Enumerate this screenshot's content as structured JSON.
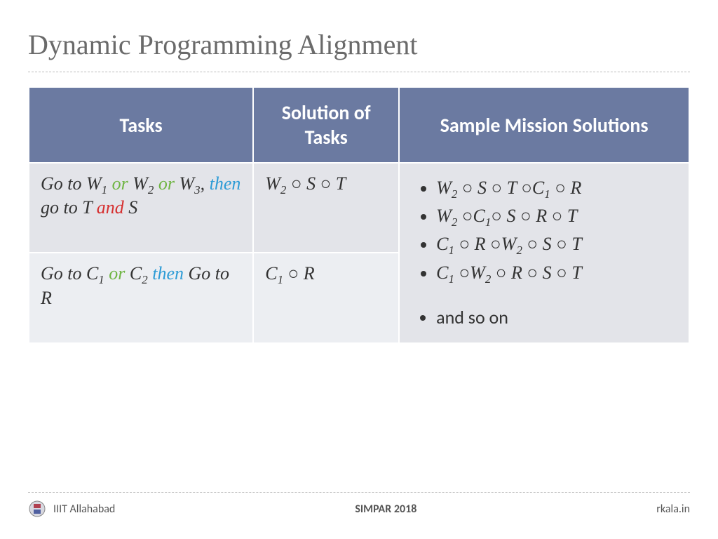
{
  "title": "Dynamic Programming Alignment",
  "table": {
    "headers": [
      "Tasks",
      "Solution of Tasks",
      "Sample Mission Solutions"
    ],
    "col_widths": [
      "34%",
      "22%",
      "44%"
    ],
    "header_bg": "#6b7aa1",
    "header_color": "#ffffff",
    "cell_bg_a": "#e3e4e9",
    "cell_bg_b": "#eceef2",
    "rows": [
      {
        "task_parts": [
          {
            "t": "Go to W",
            "cls": ""
          },
          {
            "t": "1",
            "cls": "sub"
          },
          {
            "t": " or ",
            "cls": "or"
          },
          {
            "t": "W",
            "cls": ""
          },
          {
            "t": "2",
            "cls": "sub"
          },
          {
            "t": " or ",
            "cls": "or"
          },
          {
            "t": "W",
            "cls": ""
          },
          {
            "t": "3",
            "cls": "sub"
          },
          {
            "t": ", ",
            "cls": ""
          },
          {
            "t": "then ",
            "cls": "then"
          },
          {
            "t": "go to T ",
            "cls": ""
          },
          {
            "t": "and ",
            "cls": "and"
          },
          {
            "t": "S",
            "cls": ""
          }
        ],
        "solution_parts": [
          {
            "t": "W",
            "cls": ""
          },
          {
            "t": "2",
            "cls": "sub"
          },
          {
            "t": " ○ ",
            "cls": "circ"
          },
          {
            "t": "S",
            "cls": ""
          },
          {
            "t": " ○ ",
            "cls": "circ"
          },
          {
            "t": " T",
            "cls": ""
          }
        ]
      },
      {
        "task_parts": [
          {
            "t": "Go to C",
            "cls": ""
          },
          {
            "t": "1",
            "cls": "sub"
          },
          {
            "t": " or ",
            "cls": "or"
          },
          {
            "t": "C",
            "cls": ""
          },
          {
            "t": "2",
            "cls": "sub"
          },
          {
            "t": " then ",
            "cls": "then"
          },
          {
            "t": "Go to R",
            "cls": ""
          }
        ],
        "solution_parts": [
          {
            "t": "C",
            "cls": ""
          },
          {
            "t": "1",
            "cls": "sub"
          },
          {
            "t": " ○ ",
            "cls": "circ"
          },
          {
            "t": "R",
            "cls": ""
          }
        ]
      }
    ],
    "sample_items": [
      [
        {
          "t": "W",
          "cls": ""
        },
        {
          "t": "2",
          "cls": "sub"
        },
        {
          "t": " ○ ",
          "cls": "circ"
        },
        {
          "t": "S",
          "cls": ""
        },
        {
          "t": " ○ ",
          "cls": "circ"
        },
        {
          "t": " T ",
          "cls": ""
        },
        {
          "t": "○",
          "cls": "circ"
        },
        {
          "t": "C",
          "cls": ""
        },
        {
          "t": "1",
          "cls": "sub"
        },
        {
          "t": " ○ ",
          "cls": "circ"
        },
        {
          "t": "R",
          "cls": ""
        }
      ],
      [
        {
          "t": "W",
          "cls": ""
        },
        {
          "t": "2",
          "cls": "sub"
        },
        {
          "t": " ○",
          "cls": "circ"
        },
        {
          "t": "C",
          "cls": ""
        },
        {
          "t": "1",
          "cls": "sub"
        },
        {
          "t": "○ ",
          "cls": "circ"
        },
        {
          "t": "S",
          "cls": ""
        },
        {
          "t": " ○ ",
          "cls": "circ"
        },
        {
          "t": "R",
          "cls": ""
        },
        {
          "t": " ○ ",
          "cls": "circ"
        },
        {
          "t": "T",
          "cls": ""
        }
      ],
      [
        {
          "t": "C",
          "cls": ""
        },
        {
          "t": "1",
          "cls": "sub"
        },
        {
          "t": " ○ ",
          "cls": "circ"
        },
        {
          "t": "R ",
          "cls": ""
        },
        {
          "t": "○",
          "cls": "circ"
        },
        {
          "t": "W",
          "cls": ""
        },
        {
          "t": "2",
          "cls": "sub"
        },
        {
          "t": " ○ ",
          "cls": "circ"
        },
        {
          "t": "S",
          "cls": ""
        },
        {
          "t": " ○ ",
          "cls": "circ"
        },
        {
          "t": " T",
          "cls": ""
        }
      ],
      [
        {
          "t": "C",
          "cls": ""
        },
        {
          "t": "1",
          "cls": "sub"
        },
        {
          "t": " ○",
          "cls": "circ"
        },
        {
          "t": "W",
          "cls": ""
        },
        {
          "t": "2",
          "cls": "sub"
        },
        {
          "t": " ○ ",
          "cls": "circ"
        },
        {
          "t": "R",
          "cls": ""
        },
        {
          "t": " ○ ",
          "cls": "circ"
        },
        {
          "t": "S",
          "cls": ""
        },
        {
          "t": " ○ ",
          "cls": "circ"
        },
        {
          "t": " T",
          "cls": ""
        }
      ]
    ],
    "sample_trailing": "and so on"
  },
  "footer": {
    "left": "IIIT Allahabad",
    "center": "SIMPAR 2018",
    "right": "rkala.in"
  },
  "colors": {
    "title": "#6a6a6a",
    "or": "#6fb543",
    "then": "#2e9cd6",
    "and": "#d62f2f",
    "dashed": "#bbbbbb"
  },
  "fonts": {
    "title": "Georgia serif 40pt",
    "header": "Gill Sans bold 28pt",
    "body": "Monotype Corsiva italic 26pt",
    "footer": "Gill Sans 16pt"
  }
}
